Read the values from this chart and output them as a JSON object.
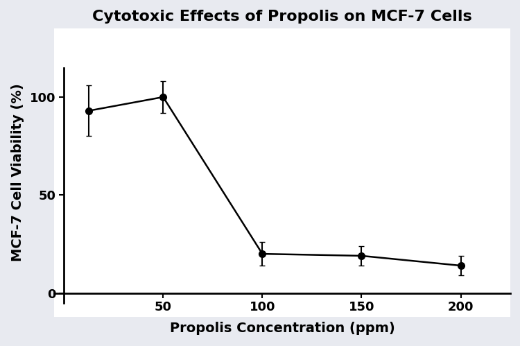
{
  "title": "Cytotoxic Effects of Propolis on MCF-7 Cells",
  "xlabel": "Propolis Concentration (ppm)",
  "ylabel": "MCF-7 Cell Viability (%)",
  "x": [
    12.5,
    50,
    100,
    150,
    200
  ],
  "y": [
    93,
    100,
    20,
    19,
    14
  ],
  "yerr": [
    13,
    8,
    6,
    5,
    5
  ],
  "xlim": [
    -5,
    225
  ],
  "ylim": [
    -12,
    135
  ],
  "yticks": [
    0,
    50,
    100
  ],
  "xticks": [
    50,
    100,
    150,
    200
  ],
  "line_color": "#000000",
  "marker_color": "#000000",
  "marker": "o",
  "markersize": 7,
  "linewidth": 1.8,
  "capsize": 3,
  "elinewidth": 1.5,
  "title_fontsize": 16,
  "label_fontsize": 14,
  "tick_fontsize": 13,
  "background_color": "#e8eaf0",
  "plot_bg_color": "#ffffff"
}
